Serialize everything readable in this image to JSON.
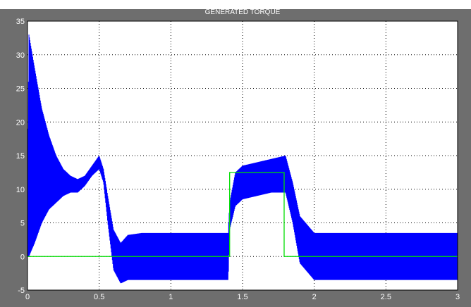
{
  "page_caption": "",
  "chart_data": {
    "type": "line",
    "title": "GENERATED TORQUE",
    "xlabel": "",
    "ylabel": "",
    "xlim": [
      0,
      3
    ],
    "ylim": [
      -5,
      35
    ],
    "grid": true,
    "x_ticks": [
      "0",
      "0.5",
      "1",
      "1.5",
      "2",
      "2.5",
      "3"
    ],
    "y_ticks": [
      "-5",
      "0",
      "5",
      "10",
      "15",
      "20",
      "25",
      "30",
      "35"
    ],
    "colors": {
      "background": "#ffffff",
      "frame": "#6e6e6e",
      "grid": "#000000",
      "torque": "#0000ff",
      "load": "#00dd00"
    },
    "series": [
      {
        "name": "",
        "style": "oscillating-band",
        "color": "#0000ff",
        "x": [
          0,
          0.01,
          0.05,
          0.1,
          0.15,
          0.2,
          0.25,
          0.3,
          0.35,
          0.4,
          0.45,
          0.5,
          0.53,
          0.56,
          0.6,
          0.65,
          0.7,
          0.8,
          1.0,
          1.2,
          1.4,
          1.41,
          1.45,
          1.5,
          1.6,
          1.7,
          1.8,
          1.85,
          1.9,
          2.0,
          2.5,
          3.0
        ],
        "upper": [
          12,
          33,
          28,
          22,
          18,
          15,
          13,
          12,
          11.5,
          12,
          13.5,
          15,
          13,
          9,
          4,
          2,
          3.2,
          3.5,
          3.5,
          3.5,
          3.5,
          8,
          12.5,
          13.5,
          14,
          14.5,
          15,
          11,
          6,
          3.5,
          3.5,
          3.5
        ],
        "lower": [
          0,
          0,
          2,
          5,
          7,
          8,
          9,
          9.5,
          9.5,
          10.5,
          12,
          13,
          11,
          5,
          -2,
          -4,
          -3.5,
          -3.5,
          -3.5,
          -3.5,
          -3.5,
          4,
          7.5,
          8.5,
          9,
          9.5,
          9.5,
          5,
          -1,
          -3.5,
          -3.5,
          -3.5
        ]
      },
      {
        "name": "",
        "style": "step",
        "color": "#00dd00",
        "x": [
          0,
          1.41,
          1.41,
          1.79,
          1.79,
          3.0
        ],
        "y": [
          0,
          0,
          12.5,
          12.5,
          0,
          0
        ]
      }
    ]
  }
}
